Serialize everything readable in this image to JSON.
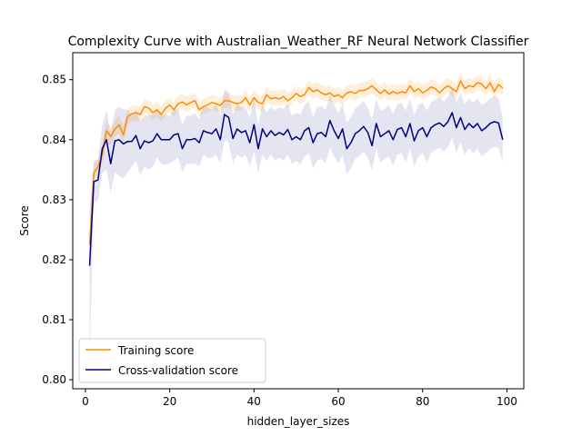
{
  "chart_data": {
    "type": "line",
    "title": "Complexity Curve with Australian_Weather_RF Neural Network Classifier",
    "xlabel": "hidden_layer_sizes",
    "ylabel": "Score",
    "xlim": [
      -3,
      104
    ],
    "ylim": [
      0.7985,
      0.8545
    ],
    "xticks": [
      0,
      20,
      40,
      60,
      80,
      100
    ],
    "yticks": [
      0.8,
      0.81,
      0.82,
      0.83,
      0.84,
      0.85
    ],
    "grid": false,
    "legend_position": "lower-left",
    "x": [
      1,
      2,
      3,
      4,
      5,
      6,
      7,
      8,
      9,
      10,
      11,
      12,
      13,
      14,
      15,
      16,
      17,
      18,
      19,
      20,
      21,
      22,
      23,
      24,
      25,
      26,
      27,
      28,
      29,
      30,
      31,
      32,
      33,
      34,
      35,
      36,
      37,
      38,
      39,
      40,
      41,
      42,
      43,
      44,
      45,
      46,
      47,
      48,
      49,
      50,
      51,
      52,
      53,
      54,
      55,
      56,
      57,
      58,
      59,
      60,
      61,
      62,
      63,
      64,
      65,
      66,
      67,
      68,
      69,
      70,
      71,
      72,
      73,
      74,
      75,
      76,
      77,
      78,
      79,
      80,
      81,
      82,
      83,
      84,
      85,
      86,
      87,
      88,
      89,
      90,
      91,
      92,
      93,
      94,
      95,
      96,
      97,
      98,
      99
    ],
    "series": [
      {
        "name": "Training score",
        "color": "#ff8c00",
        "band_opacity": 0.15,
        "values": [
          0.8225,
          0.8345,
          0.8355,
          0.8375,
          0.8415,
          0.8405,
          0.8418,
          0.8425,
          0.8408,
          0.8438,
          0.8443,
          0.8445,
          0.8442,
          0.8455,
          0.8453,
          0.8445,
          0.845,
          0.8442,
          0.8452,
          0.8458,
          0.845,
          0.846,
          0.8463,
          0.8458,
          0.8462,
          0.8465,
          0.845,
          0.8455,
          0.8458,
          0.8462,
          0.846,
          0.8457,
          0.8465,
          0.8465,
          0.8462,
          0.846,
          0.8462,
          0.847,
          0.8458,
          0.847,
          0.8462,
          0.846,
          0.8475,
          0.8468,
          0.847,
          0.8468,
          0.8472,
          0.8465,
          0.847,
          0.8477,
          0.8472,
          0.8475,
          0.8487,
          0.848,
          0.8483,
          0.8478,
          0.8475,
          0.8478,
          0.8472,
          0.8475,
          0.847,
          0.8478,
          0.848,
          0.8477,
          0.8482,
          0.8482,
          0.8485,
          0.849,
          0.8483,
          0.8477,
          0.8483,
          0.8476,
          0.848,
          0.8477,
          0.848,
          0.8478,
          0.849,
          0.848,
          0.8485,
          0.8478,
          0.8482,
          0.8488,
          0.8485,
          0.8478,
          0.8485,
          0.849,
          0.8485,
          0.848,
          0.8498,
          0.8485,
          0.849,
          0.8488,
          0.8495,
          0.8493,
          0.8485,
          0.8495,
          0.848,
          0.8492,
          0.8486
        ],
        "lower": [
          0.8215,
          0.8335,
          0.8345,
          0.836,
          0.8395,
          0.839,
          0.8405,
          0.841,
          0.8395,
          0.8425,
          0.843,
          0.8432,
          0.843,
          0.8443,
          0.844,
          0.8433,
          0.8438,
          0.843,
          0.844,
          0.8445,
          0.8438,
          0.8448,
          0.8451,
          0.8446,
          0.845,
          0.8453,
          0.8438,
          0.8443,
          0.8446,
          0.845,
          0.8448,
          0.8445,
          0.8453,
          0.8453,
          0.845,
          0.8448,
          0.845,
          0.8458,
          0.8446,
          0.8458,
          0.845,
          0.8448,
          0.8463,
          0.8456,
          0.8458,
          0.8456,
          0.846,
          0.8453,
          0.8458,
          0.8465,
          0.846,
          0.8463,
          0.8475,
          0.8468,
          0.8471,
          0.8466,
          0.8463,
          0.8466,
          0.846,
          0.8463,
          0.8458,
          0.8466,
          0.8468,
          0.8465,
          0.847,
          0.847,
          0.8473,
          0.8478,
          0.8471,
          0.8465,
          0.8471,
          0.8464,
          0.8468,
          0.8465,
          0.8468,
          0.8466,
          0.8478,
          0.8468,
          0.8473,
          0.8466,
          0.847,
          0.8476,
          0.8473,
          0.8466,
          0.8473,
          0.8478,
          0.8473,
          0.8468,
          0.8486,
          0.8473,
          0.8478,
          0.8476,
          0.8483,
          0.8481,
          0.8473,
          0.8483,
          0.8468,
          0.848,
          0.8474
        ],
        "upper": [
          0.824,
          0.8358,
          0.8368,
          0.8392,
          0.8432,
          0.842,
          0.8432,
          0.844,
          0.8422,
          0.8452,
          0.8457,
          0.8458,
          0.8455,
          0.8468,
          0.8466,
          0.8458,
          0.8463,
          0.8455,
          0.8465,
          0.8471,
          0.8463,
          0.8473,
          0.8476,
          0.8471,
          0.8475,
          0.8478,
          0.8463,
          0.8468,
          0.8471,
          0.8475,
          0.8473,
          0.847,
          0.8478,
          0.8478,
          0.8475,
          0.8473,
          0.8475,
          0.8483,
          0.8471,
          0.8483,
          0.8475,
          0.8473,
          0.8488,
          0.8481,
          0.8483,
          0.8481,
          0.8485,
          0.8478,
          0.8483,
          0.849,
          0.8485,
          0.8488,
          0.85,
          0.8493,
          0.8496,
          0.8491,
          0.8488,
          0.8491,
          0.8485,
          0.8488,
          0.8483,
          0.8491,
          0.8493,
          0.849,
          0.8495,
          0.8495,
          0.8498,
          0.8503,
          0.8496,
          0.849,
          0.8496,
          0.8489,
          0.8493,
          0.849,
          0.8493,
          0.8491,
          0.8503,
          0.8493,
          0.8498,
          0.8491,
          0.8495,
          0.8501,
          0.8498,
          0.8491,
          0.8498,
          0.8503,
          0.8498,
          0.8493,
          0.8511,
          0.8498,
          0.8503,
          0.8501,
          0.8508,
          0.8506,
          0.8498,
          0.8508,
          0.8493,
          0.8505,
          0.8499
        ]
      },
      {
        "name": "Cross-validation score",
        "color": "#000080",
        "band_opacity": 0.1,
        "values": [
          0.819,
          0.833,
          0.8333,
          0.8385,
          0.84,
          0.836,
          0.8398,
          0.84,
          0.8393,
          0.8397,
          0.8397,
          0.8407,
          0.8385,
          0.8398,
          0.8395,
          0.8398,
          0.841,
          0.84,
          0.84,
          0.84,
          0.8408,
          0.841,
          0.8385,
          0.84,
          0.84,
          0.8402,
          0.8395,
          0.8415,
          0.8412,
          0.841,
          0.8418,
          0.84,
          0.8442,
          0.8437,
          0.8402,
          0.8418,
          0.8412,
          0.8415,
          0.8395,
          0.8425,
          0.8385,
          0.8418,
          0.8405,
          0.8415,
          0.8407,
          0.8412,
          0.8408,
          0.8417,
          0.84,
          0.8405,
          0.84,
          0.8415,
          0.842,
          0.8395,
          0.841,
          0.8412,
          0.8405,
          0.8432,
          0.8415,
          0.8402,
          0.8418,
          0.8385,
          0.8395,
          0.841,
          0.8415,
          0.8422,
          0.8412,
          0.839,
          0.8427,
          0.8405,
          0.841,
          0.8415,
          0.84,
          0.8417,
          0.842,
          0.8405,
          0.8427,
          0.8398,
          0.8415,
          0.842,
          0.8405,
          0.842,
          0.8425,
          0.8428,
          0.8422,
          0.843,
          0.8445,
          0.842,
          0.8437,
          0.8417,
          0.8427,
          0.842,
          0.8427,
          0.8415,
          0.842,
          0.8427,
          0.843,
          0.8428,
          0.84
        ],
        "lower": [
          0.803,
          0.8295,
          0.83,
          0.8345,
          0.835,
          0.831,
          0.8345,
          0.834,
          0.8335,
          0.8345,
          0.8355,
          0.8365,
          0.834,
          0.8355,
          0.835,
          0.8355,
          0.837,
          0.836,
          0.8358,
          0.836,
          0.8365,
          0.837,
          0.8345,
          0.836,
          0.836,
          0.836,
          0.8355,
          0.8375,
          0.837,
          0.837,
          0.8375,
          0.836,
          0.84,
          0.8395,
          0.836,
          0.8375,
          0.837,
          0.8375,
          0.8355,
          0.838,
          0.8345,
          0.8375,
          0.8365,
          0.8375,
          0.8365,
          0.837,
          0.8365,
          0.8375,
          0.836,
          0.8365,
          0.8358,
          0.8372,
          0.8377,
          0.8352,
          0.8365,
          0.8368,
          0.836,
          0.8388,
          0.8372,
          0.836,
          0.8375,
          0.8342,
          0.8352,
          0.8368,
          0.8372,
          0.838,
          0.837,
          0.8348,
          0.8385,
          0.8362,
          0.8368,
          0.8372,
          0.8357,
          0.8375,
          0.8378,
          0.8362,
          0.8385,
          0.8355,
          0.8372,
          0.8378,
          0.8362,
          0.8378,
          0.8383,
          0.8386,
          0.838,
          0.8388,
          0.8403,
          0.8378,
          0.8395,
          0.8375,
          0.8385,
          0.8378,
          0.8385,
          0.8372,
          0.8378,
          0.8385,
          0.8388,
          0.8386,
          0.8363
        ],
        "upper": [
          0.828,
          0.8365,
          0.8368,
          0.8425,
          0.845,
          0.841,
          0.845,
          0.8455,
          0.845,
          0.845,
          0.844,
          0.845,
          0.843,
          0.844,
          0.844,
          0.8442,
          0.845,
          0.844,
          0.8442,
          0.844,
          0.845,
          0.845,
          0.8425,
          0.844,
          0.844,
          0.8444,
          0.8435,
          0.8455,
          0.8454,
          0.845,
          0.846,
          0.844,
          0.8484,
          0.8479,
          0.8444,
          0.846,
          0.8454,
          0.8455,
          0.8435,
          0.847,
          0.8425,
          0.846,
          0.8445,
          0.8455,
          0.8449,
          0.8454,
          0.8451,
          0.8459,
          0.844,
          0.8445,
          0.8442,
          0.8458,
          0.8463,
          0.8438,
          0.8455,
          0.8456,
          0.845,
          0.8476,
          0.8458,
          0.8444,
          0.8461,
          0.8428,
          0.8438,
          0.8452,
          0.8458,
          0.8464,
          0.8454,
          0.8432,
          0.8469,
          0.8448,
          0.8452,
          0.8458,
          0.8443,
          0.8459,
          0.8462,
          0.8448,
          0.8469,
          0.8441,
          0.8458,
          0.8462,
          0.8448,
          0.8462,
          0.8467,
          0.847,
          0.8464,
          0.8472,
          0.8487,
          0.8462,
          0.8479,
          0.8459,
          0.8469,
          0.8462,
          0.8469,
          0.8458,
          0.8462,
          0.8469,
          0.8472,
          0.847,
          0.8437
        ]
      }
    ]
  }
}
